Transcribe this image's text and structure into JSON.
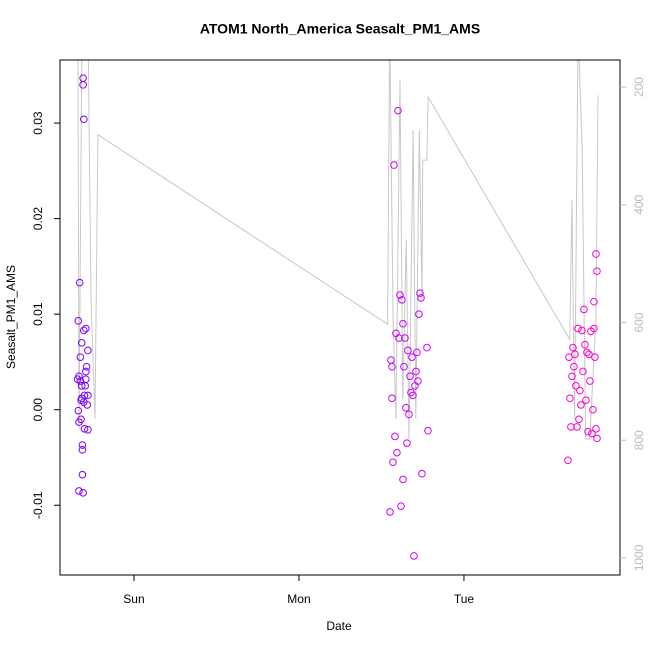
{
  "chart_data": {
    "type": "scatter",
    "title": "ATOM1 North_America Seasalt_PM1_AMS",
    "x_label": "Date",
    "y_label": "Seasalt_PM1_AMS",
    "xlim": [
      -10.76,
      70.7
    ],
    "xticks": [
      {
        "value": 0,
        "label": "Sun"
      },
      {
        "value": 24,
        "label": "Mon"
      },
      {
        "value": 48,
        "label": "Tue"
      }
    ],
    "ylim": [
      -0.0173,
      0.0366
    ],
    "yticks": [
      -0.01,
      {
        "value": 0,
        "label": "0.00"
      },
      0.01,
      0.02,
      0.03
    ],
    "y2lim": [
      1029,
      154
    ],
    "y2ticks": [
      200,
      400,
      600,
      800,
      1000
    ],
    "series": [
      {
        "color": "#7f00ff",
        "x": [
          -8.1,
          -8.0,
          -8.1,
          -8.0,
          -8.0,
          -7.9,
          -7.8,
          -7.8,
          -7.7,
          -7.7,
          -7.6,
          -7.6,
          -7.5,
          -7.5,
          -7.5,
          -7.4,
          -7.4,
          -7.4,
          -7.3,
          -7.3,
          -7.2,
          -7.2,
          -7.0,
          -7.0,
          -6.9,
          -6.8,
          -6.7,
          -6.7,
          -6.7,
          -7.1,
          -7.0,
          -7.6,
          -7.3,
          -8.2
        ],
        "values": [
          0.0093,
          0.0035,
          -0.0001,
          -0.0013,
          -0.0085,
          0.0133,
          0.0055,
          0.003,
          0.001,
          -0.001,
          0.0025,
          0.007,
          -0.0037,
          -0.0042,
          -0.0068,
          -0.0087,
          0.0347,
          0.034,
          0.0304,
          0.0083,
          0.0015,
          -0.002,
          0.0085,
          0.004,
          0.0045,
          0.0005,
          -0.0021,
          0.0062,
          0.0015,
          0.0025,
          0.0032,
          0.0012,
          0.0008,
          0.0032
        ]
      },
      {
        "color": "#cc00ff",
        "x": [
          37.24,
          37.38,
          37.53,
          37.67,
          37.82,
          37.96,
          38.25,
          38.4,
          38.55,
          38.98,
          38.84,
          39.13,
          38.69,
          39.27,
          39.56,
          39.85,
          38.11,
          40.15,
          40.29,
          40.73,
          40.44,
          40.87,
          41.45,
          41.02,
          41.16,
          40.0,
          41.6,
          41.75,
          41.31,
          41.89,
          42.62,
          42.76,
          39.42,
          37.53,
          39.13,
          40.58,
          39.71
        ],
        "values": [
          -0.0107,
          0.0052,
          0.0012,
          -0.0055,
          0.0256,
          -0.0028,
          -0.0045,
          0.0313,
          0.0075,
          0.0115,
          -0.0101,
          -0.0073,
          0.012,
          0.0045,
          0.0002,
          0.0062,
          0.008,
          0.0035,
          0.0018,
          -0.0153,
          0.0055,
          0.0025,
          0.01,
          0.004,
          0.006,
          -0.0005,
          0.0122,
          0.0117,
          0.003,
          -0.0067,
          0.0065,
          -0.0022,
          0.0075,
          0.0045,
          0.009,
          0.0015,
          -0.0035
        ]
      },
      {
        "color": "#ff00cc",
        "x": [
          63.13,
          63.27,
          63.42,
          63.56,
          63.71,
          63.85,
          64.0,
          64.29,
          64.44,
          64.58,
          64.73,
          64.87,
          65.16,
          65.31,
          65.45,
          65.6,
          65.75,
          66.04,
          66.18,
          66.33,
          66.47,
          66.62,
          66.91,
          67.05,
          67.2,
          67.35,
          66.91,
          67.2,
          67.35,
          66.76,
          65.89,
          65.02,
          64.15
        ],
        "values": [
          -0.0053,
          0.0055,
          0.0012,
          -0.0018,
          0.0035,
          0.0065,
          0.0045,
          0.0025,
          -0.0018,
          0.0085,
          -0.001,
          0.002,
          0.0083,
          0.004,
          0.0105,
          0.0068,
          0.001,
          -0.0023,
          0.0058,
          0.003,
          0.0082,
          -0.0025,
          0.0113,
          0.0055,
          0.0163,
          0.0145,
          0.0085,
          -0.002,
          -0.003,
          0.0,
          0.006,
          0.0005,
          0.0058
        ]
      },
      {
        "color": "#c8c8c8",
        "type": "line",
        "axis": "y2",
        "x": [
          -8.15,
          -8.0,
          -7.56,
          -6.69,
          -6.25,
          -5.67,
          -5.24,
          36.9,
          37.2,
          37.7,
          38.1,
          38.7,
          39.1,
          39.6,
          40.0,
          40.6,
          41.0,
          41.5,
          41.9,
          42.0,
          42.6,
          42.8,
          63.4,
          63.7,
          64.1,
          64.6,
          65.2,
          65.7,
          66.3,
          67.2,
          67.5
        ],
        "values": [
          100,
          781,
          100,
          100,
          561,
          764,
          281,
          603,
          100,
          595,
          764,
          188,
          731,
          459,
          798,
          273,
          764,
          273,
          561,
          324,
          324,
          217,
          629,
          392,
          764,
          100,
          307,
          798,
          798,
          595,
          214
        ]
      }
    ]
  }
}
